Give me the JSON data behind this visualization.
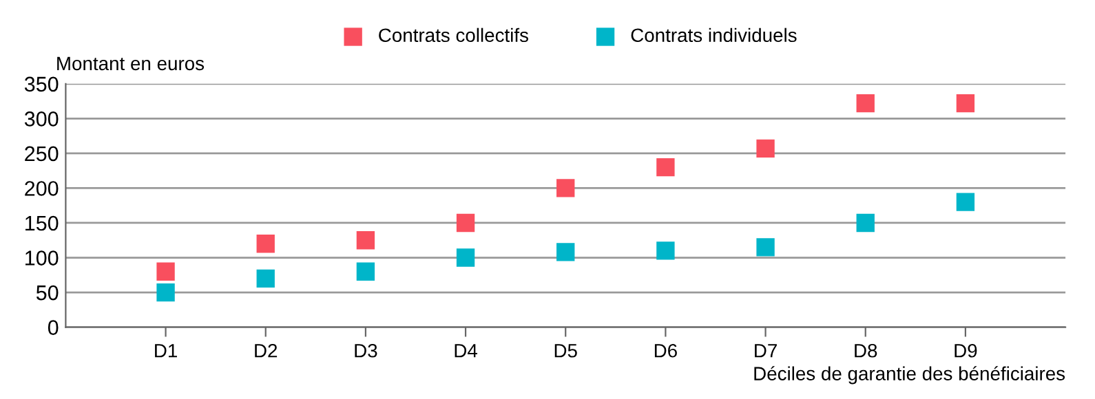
{
  "chart_data": {
    "type": "scatter",
    "ylabel": "Montant en euros",
    "xlabel": "Déciles de garantie des bénéficiaires",
    "categories": [
      "D1",
      "D2",
      "D3",
      "D4",
      "D5",
      "D6",
      "D7",
      "D8",
      "D9"
    ],
    "series": [
      {
        "name": "Contrats collectifs",
        "color": "#f94f5e",
        "values": [
          80,
          120,
          125,
          150,
          200,
          230,
          257,
          322,
          322
        ]
      },
      {
        "name": "Contrats individuels",
        "color": "#00b5c9",
        "values": [
          50,
          70,
          80,
          100,
          108,
          110,
          115,
          150,
          180
        ]
      }
    ],
    "ylim": [
      0,
      350
    ],
    "yticks": [
      0,
      50,
      100,
      150,
      200,
      250,
      300,
      350
    ],
    "grid": "y",
    "legend": "top",
    "marker": "square"
  }
}
